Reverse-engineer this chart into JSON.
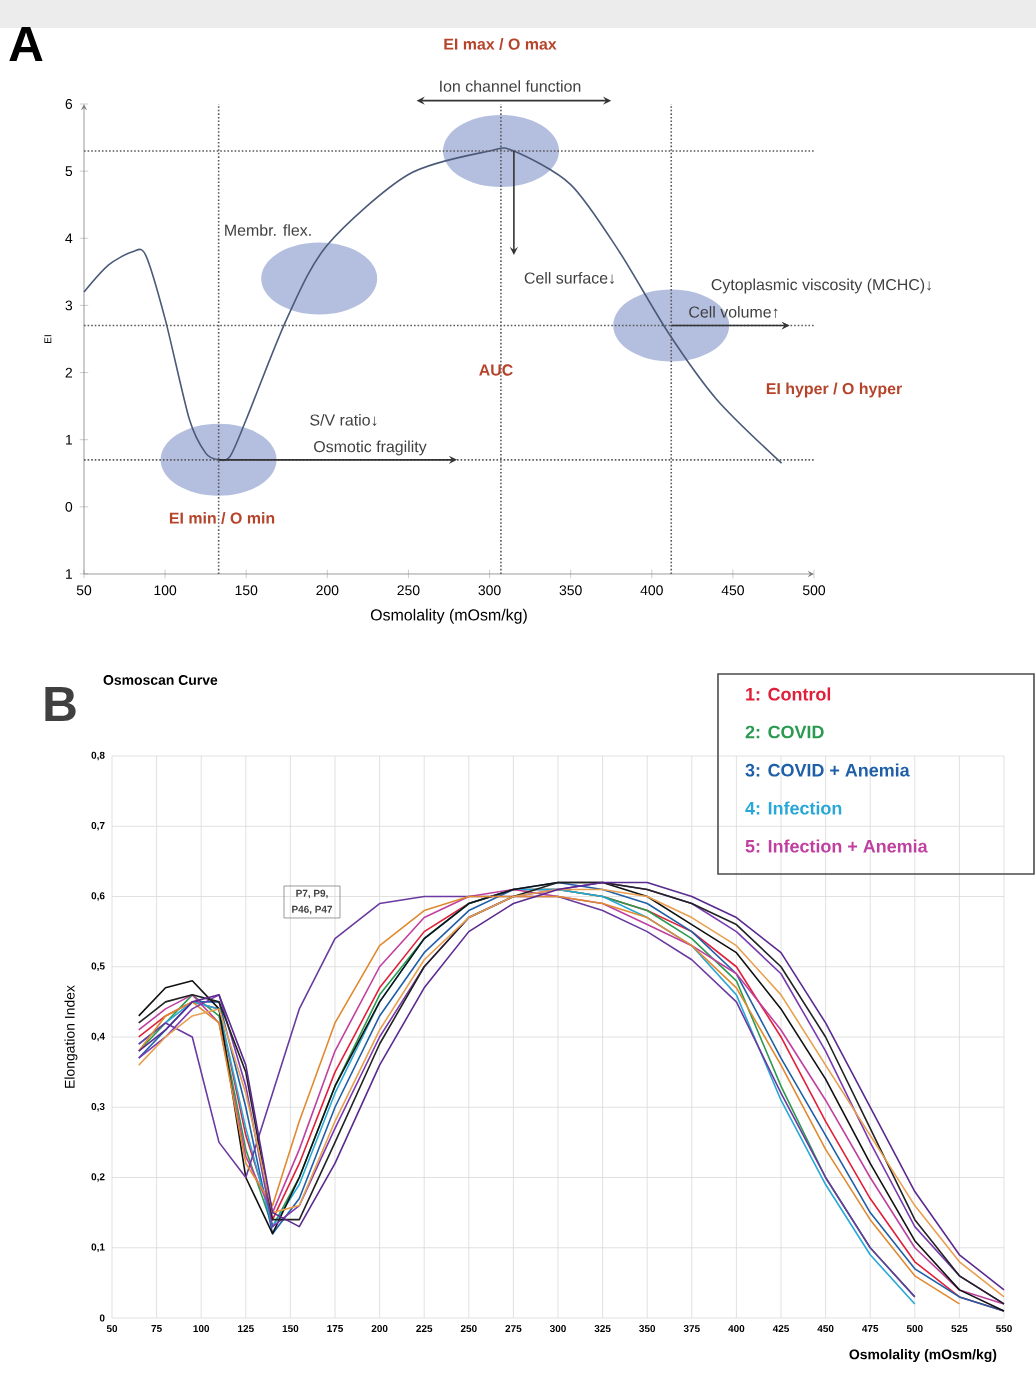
{
  "chart_data": [
    {
      "type": "line",
      "xlabel": "Osmolality (mOsm/kg)",
      "ylabel": "EI",
      "color": "#4a5a78",
      "x": [
        50,
        65,
        80,
        88,
        100,
        115,
        125,
        133,
        140,
        150,
        175,
        200,
        250,
        300,
        315,
        350,
        380,
        410,
        440,
        480
      ],
      "values": [
        3.2,
        3.6,
        3.8,
        3.75,
        2.8,
        1.3,
        0.8,
        0.7,
        0.75,
        1.3,
        2.8,
        3.9,
        4.95,
        5.3,
        5.3,
        4.8,
        3.8,
        2.6,
        1.6,
        0.65
      ],
      "xlim": [
        50,
        500
      ],
      "ylim": [
        -1,
        6
      ],
      "xticks": [
        50,
        100,
        150,
        200,
        250,
        300,
        350,
        400,
        450,
        500
      ],
      "yticks": [
        {
          "value": -1,
          "label": "1"
        },
        0,
        1,
        2,
        3,
        4,
        5,
        6
      ],
      "ref_lines": [
        {
          "axis": "y",
          "value": 0.7,
          "line_style": "dotted"
        },
        {
          "axis": "x",
          "value": 133,
          "line_style": "dotted"
        },
        {
          "axis": "y",
          "value": 5.3,
          "line_style": "dotted"
        },
        {
          "axis": "x",
          "value": 307,
          "line_style": "dotted"
        },
        {
          "axis": "y",
          "value": 2.7,
          "line_style": "dotted"
        },
        {
          "axis": "x",
          "value": 412,
          "line_style": "dotted"
        }
      ],
      "annotations": [
        "A",
        "EI max / O max",
        "Ion channel function",
        "Membr. flex.",
        "Cell surface↓",
        "Cytoplasmic viscosity (MCHC)↓",
        "Cell volume↑",
        "S/V ratio↓",
        "Osmotic fragility",
        "AUC",
        "EI hyper / O hyper",
        "EI min / O min"
      ]
    },
    {
      "type": "line",
      "title": "Osmoscan Curve",
      "xlabel": "Osmolality (mOsm/kg)",
      "ylabel": "Elongation Index",
      "x": [
        65,
        80,
        95,
        110,
        125,
        140,
        155,
        175,
        200,
        225,
        250,
        275,
        300,
        325,
        350,
        375,
        400,
        425,
        450,
        475,
        500,
        525,
        550
      ],
      "series": [
        {
          "name": "1: Control",
          "color": "#e0203a",
          "values": [
            0.4,
            0.43,
            0.45,
            0.44,
            0.26,
            0.14,
            0.22,
            0.35,
            0.47,
            0.55,
            0.59,
            0.61,
            0.61,
            0.6,
            0.58,
            0.55,
            0.5,
            0.4,
            0.28,
            0.17,
            0.08,
            0.03,
            0.01
          ]
        },
        {
          "name": "2: COVID",
          "color": "#2a9a50",
          "values": [
            0.38,
            0.42,
            0.46,
            0.43,
            0.24,
            0.13,
            0.2,
            0.33,
            0.46,
            0.54,
            0.59,
            0.61,
            0.61,
            0.6,
            0.58,
            0.54,
            0.48,
            0.33,
            0.2,
            0.1,
            0.03,
            null,
            null
          ]
        },
        {
          "name": "3: COVID + Anemia",
          "color": "#1f5fa8",
          "values": [
            0.37,
            0.41,
            0.45,
            0.45,
            0.3,
            0.12,
            0.17,
            0.3,
            0.43,
            0.52,
            0.58,
            0.61,
            0.62,
            0.61,
            0.59,
            0.55,
            0.49,
            0.37,
            0.26,
            0.15,
            0.07,
            0.03,
            0.01
          ]
        },
        {
          "name": "4: Infection",
          "color": "#29a8d8",
          "values": [
            0.39,
            0.42,
            0.45,
            0.44,
            0.27,
            0.13,
            0.19,
            0.32,
            0.45,
            0.54,
            0.59,
            0.61,
            0.61,
            0.6,
            0.57,
            0.53,
            0.46,
            0.31,
            0.19,
            0.09,
            0.02,
            null,
            null
          ]
        },
        {
          "name": "5: Infection + Anemia",
          "color": "#c040a0",
          "values": [
            0.41,
            0.44,
            0.46,
            0.42,
            0.23,
            0.15,
            0.24,
            0.38,
            0.5,
            0.57,
            0.6,
            0.61,
            0.6,
            0.59,
            0.56,
            0.53,
            0.49,
            0.41,
            0.31,
            0.2,
            0.1,
            0.04,
            0.02
          ]
        },
        {
          "color": "#111111",
          "values": [
            0.43,
            0.47,
            0.48,
            0.44,
            0.2,
            0.12,
            0.2,
            0.33,
            0.45,
            0.54,
            0.59,
            0.61,
            0.62,
            0.62,
            0.6,
            0.56,
            0.52,
            0.44,
            0.34,
            0.22,
            0.11,
            0.04,
            0.01
          ]
        },
        {
          "color": "#6a3aa0",
          "values": [
            0.39,
            0.42,
            0.4,
            0.25,
            0.2,
            0.32,
            0.44,
            0.54,
            0.59,
            0.6,
            0.6,
            0.6,
            0.6,
            0.58,
            0.55,
            0.51,
            0.45,
            0.32,
            0.2,
            0.1,
            0.03,
            null,
            null
          ]
        },
        {
          "color": "#e08a30",
          "values": [
            0.38,
            0.43,
            0.45,
            0.42,
            0.22,
            0.16,
            0.28,
            0.42,
            0.53,
            0.58,
            0.6,
            0.6,
            0.6,
            0.59,
            0.57,
            0.53,
            0.47,
            0.36,
            0.24,
            0.14,
            0.06,
            0.02,
            null
          ]
        },
        {
          "color": "#7a3ab0",
          "values": [
            0.37,
            0.4,
            0.44,
            0.46,
            0.33,
            0.13,
            0.16,
            0.27,
            0.4,
            0.5,
            0.57,
            0.6,
            0.61,
            0.62,
            0.61,
            0.59,
            0.55,
            0.49,
            0.38,
            0.25,
            0.13,
            0.06,
            0.02
          ]
        },
        {
          "color": "#222222",
          "values": [
            0.42,
            0.45,
            0.46,
            0.45,
            0.35,
            0.14,
            0.14,
            0.25,
            0.39,
            0.5,
            0.57,
            0.6,
            0.62,
            0.62,
            0.61,
            0.59,
            0.56,
            0.5,
            0.4,
            0.27,
            0.14,
            0.06,
            0.02
          ]
        },
        {
          "color": "#e8a050",
          "values": [
            0.36,
            0.4,
            0.43,
            0.44,
            0.32,
            0.15,
            0.16,
            0.28,
            0.41,
            0.51,
            0.57,
            0.6,
            0.61,
            0.61,
            0.6,
            0.57,
            0.53,
            0.46,
            0.36,
            0.26,
            0.16,
            0.08,
            0.03
          ]
        },
        {
          "color": "#5a2a90",
          "values": [
            0.38,
            0.41,
            0.45,
            0.46,
            0.36,
            0.15,
            0.13,
            0.22,
            0.36,
            0.47,
            0.55,
            0.59,
            0.61,
            0.62,
            0.62,
            0.6,
            0.57,
            0.52,
            0.42,
            0.3,
            0.18,
            0.09,
            0.04
          ]
        }
      ],
      "xlim": [
        50,
        550
      ],
      "ylim": [
        0,
        0.8
      ],
      "xticks": [
        50,
        75,
        100,
        125,
        150,
        175,
        200,
        225,
        250,
        275,
        300,
        325,
        350,
        375,
        400,
        425,
        450,
        475,
        500,
        525,
        550
      ],
      "yticks": [
        0,
        {
          "value": 0.1,
          "label": "0,1"
        },
        {
          "value": 0.2,
          "label": "0,2"
        },
        {
          "value": 0.3,
          "label": "0,3"
        },
        {
          "value": 0.4,
          "label": "0,4"
        },
        {
          "value": 0.5,
          "label": "0,5"
        },
        {
          "value": 0.6,
          "label": "0,6"
        },
        {
          "value": 0.7,
          "label": "0,7"
        },
        {
          "value": 0.8,
          "label": "0,8"
        }
      ],
      "grid": true,
      "legend": "top right",
      "annotations": [
        "B",
        "P7, P9,",
        "P46, P47"
      ]
    }
  ]
}
